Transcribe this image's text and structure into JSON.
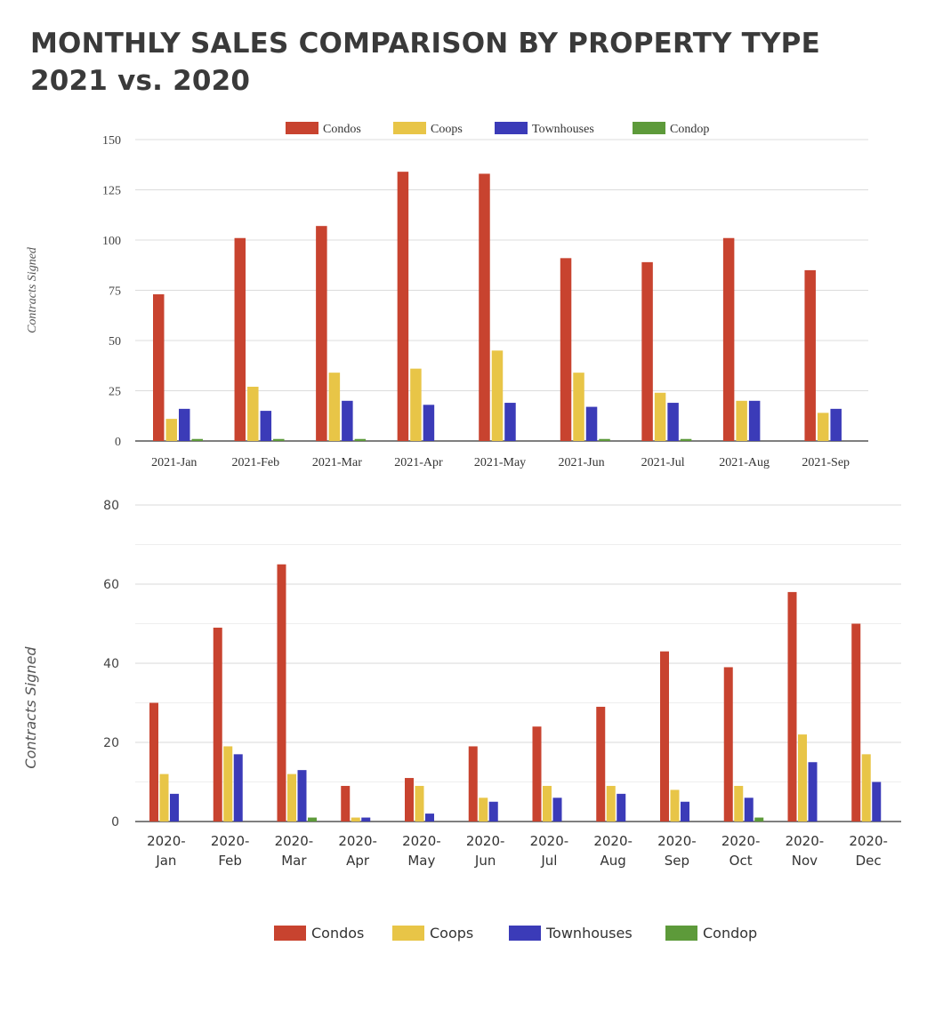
{
  "header": {
    "title_line1": "MONTHLY SALES COMPARISON BY PROPERTY TYPE",
    "title_line2": "2021 vs. 2020"
  },
  "chart_data": [
    {
      "type": "bar",
      "ylabel": "Contracts Signed",
      "ylim": [
        0,
        150
      ],
      "yticks": [
        0,
        25,
        50,
        75,
        100,
        125,
        150
      ],
      "legend_position": "top",
      "grid": true,
      "categories": [
        "2021-Jan",
        "2021-Feb",
        "2021-Mar",
        "2021-Apr",
        "2021-May",
        "2021-Jun",
        "2021-Jul",
        "2021-Aug",
        "2021-Sep"
      ],
      "series": [
        {
          "name": "Condos",
          "color": "#c8432f",
          "values": [
            73,
            101,
            107,
            134,
            133,
            91,
            89,
            101,
            85
          ]
        },
        {
          "name": "Coops",
          "color": "#e8c547",
          "values": [
            11,
            27,
            34,
            36,
            45,
            34,
            24,
            20,
            14
          ]
        },
        {
          "name": "Townhouses",
          "color": "#3b3bb8",
          "values": [
            16,
            15,
            20,
            18,
            19,
            17,
            19,
            20,
            16
          ]
        },
        {
          "name": "Condop",
          "color": "#5d9a3a",
          "values": [
            1,
            1,
            1,
            0,
            0,
            1,
            1,
            0,
            0
          ]
        }
      ]
    },
    {
      "type": "bar",
      "ylabel": "Contracts Signed",
      "ylim": [
        0,
        80
      ],
      "yticks": [
        0,
        20,
        40,
        60,
        80
      ],
      "legend_position": "bottom",
      "grid": true,
      "categories": [
        "2020-Jan",
        "2020-Feb",
        "2020-Mar",
        "2020-Apr",
        "2020-May",
        "2020-Jun",
        "2020-Jul",
        "2020-Aug",
        "2020-Sep",
        "2020-Oct",
        "2020-Nov",
        "2020-Dec"
      ],
      "series": [
        {
          "name": "Condos",
          "color": "#c8432f",
          "values": [
            30,
            49,
            65,
            9,
            11,
            19,
            24,
            29,
            43,
            39,
            58,
            50
          ]
        },
        {
          "name": "Coops",
          "color": "#e8c547",
          "values": [
            12,
            19,
            12,
            1,
            9,
            6,
            9,
            9,
            8,
            9,
            22,
            17
          ]
        },
        {
          "name": "Townhouses",
          "color": "#3b3bb8",
          "values": [
            7,
            17,
            13,
            1,
            2,
            5,
            6,
            7,
            5,
            6,
            15,
            10
          ]
        },
        {
          "name": "Condop",
          "color": "#5d9a3a",
          "values": [
            0,
            0,
            1,
            0,
            0,
            0,
            0,
            0,
            0,
            1,
            0,
            0
          ]
        }
      ]
    }
  ]
}
